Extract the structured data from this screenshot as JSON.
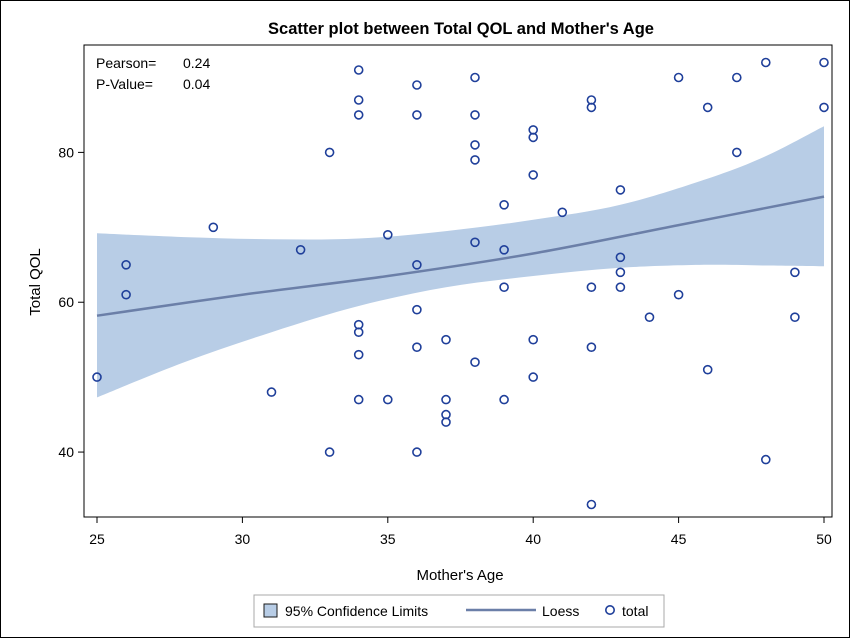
{
  "chart_data": {
    "type": "scatter",
    "title": "Scatter plot between Total QOL and Mother's Age",
    "xlabel": "Mother's Age",
    "ylabel": "Total QOL",
    "xlim": [
      25,
      50
    ],
    "ylim": [
      32,
      93
    ],
    "x_ticks": [
      "25",
      "30",
      "35",
      "40",
      "45",
      "50"
    ],
    "y_ticks": [
      "40",
      "60",
      "80"
    ],
    "grid": false,
    "stats": [
      {
        "label": "Pearson=",
        "value": "0.24"
      },
      {
        "label": "P-Value=",
        "value": "0.04"
      }
    ],
    "legend": {
      "position": "bottom",
      "items": [
        {
          "kind": "band",
          "label": "95% Confidence Limits"
        },
        {
          "kind": "line",
          "label": "Loess"
        },
        {
          "kind": "marker",
          "label": "total"
        }
      ]
    },
    "colors": {
      "band": "#b8cde6",
      "line": "#6b7fa8",
      "marker": "#1f3f9a"
    },
    "series": [
      {
        "name": "total",
        "kind": "scatter",
        "points": [
          [
            25,
            50
          ],
          [
            26,
            65
          ],
          [
            26,
            61
          ],
          [
            29,
            70
          ],
          [
            31,
            48
          ],
          [
            32,
            67
          ],
          [
            33,
            80
          ],
          [
            33,
            40
          ],
          [
            34,
            91
          ],
          [
            34,
            87
          ],
          [
            34,
            85
          ],
          [
            34,
            57
          ],
          [
            34,
            56
          ],
          [
            34,
            53
          ],
          [
            34,
            47
          ],
          [
            35,
            69
          ],
          [
            35,
            47
          ],
          [
            36,
            89
          ],
          [
            36,
            85
          ],
          [
            36,
            65
          ],
          [
            36,
            59
          ],
          [
            36,
            54
          ],
          [
            36,
            40
          ],
          [
            37,
            55
          ],
          [
            37,
            47
          ],
          [
            37,
            45
          ],
          [
            37,
            44
          ],
          [
            38,
            90
          ],
          [
            38,
            85
          ],
          [
            38,
            81
          ],
          [
            38,
            79
          ],
          [
            38,
            68
          ],
          [
            38,
            52
          ],
          [
            39,
            73
          ],
          [
            39,
            67
          ],
          [
            39,
            62
          ],
          [
            39,
            47
          ],
          [
            40,
            83
          ],
          [
            40,
            82
          ],
          [
            40,
            77
          ],
          [
            40,
            55
          ],
          [
            40,
            50
          ],
          [
            41,
            72
          ],
          [
            42,
            87
          ],
          [
            42,
            86
          ],
          [
            42,
            62
          ],
          [
            42,
            54
          ],
          [
            42,
            33
          ],
          [
            43,
            75
          ],
          [
            43,
            66
          ],
          [
            43,
            64
          ],
          [
            43,
            62
          ],
          [
            44,
            58
          ],
          [
            45,
            90
          ],
          [
            45,
            61
          ],
          [
            46,
            86
          ],
          [
            46,
            51
          ],
          [
            47,
            90
          ],
          [
            47,
            80
          ],
          [
            48,
            92
          ],
          [
            48,
            39
          ],
          [
            49,
            64
          ],
          [
            49,
            58
          ],
          [
            50,
            92
          ],
          [
            50,
            86
          ]
        ]
      },
      {
        "name": "Loess",
        "kind": "line",
        "points": [
          [
            25,
            58.2
          ],
          [
            30,
            61.0
          ],
          [
            35,
            63.5
          ],
          [
            40,
            66.5
          ],
          [
            45,
            70.3
          ],
          [
            50,
            74.1
          ]
        ]
      },
      {
        "name": "95% Confidence Limits",
        "kind": "band",
        "upper": [
          [
            25,
            69.2
          ],
          [
            28,
            68.7
          ],
          [
            31,
            68.4
          ],
          [
            34,
            68.5
          ],
          [
            37,
            69.5
          ],
          [
            40,
            71.0
          ],
          [
            43,
            73.0
          ],
          [
            46,
            76.5
          ],
          [
            48,
            79.5
          ],
          [
            50,
            83.5
          ]
        ],
        "lower": [
          [
            25,
            47.3
          ],
          [
            28,
            52.0
          ],
          [
            31,
            56.0
          ],
          [
            34,
            59.5
          ],
          [
            37,
            62.0
          ],
          [
            40,
            63.5
          ],
          [
            43,
            64.6
          ],
          [
            46,
            65.0
          ],
          [
            48,
            64.9
          ],
          [
            50,
            64.8
          ]
        ]
      }
    ]
  }
}
